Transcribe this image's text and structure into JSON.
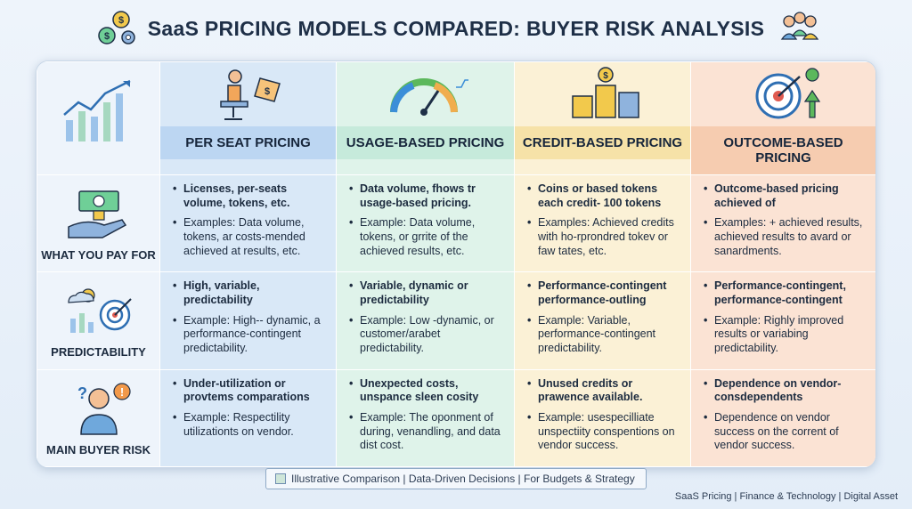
{
  "title": "SaaS PRICING MODELS COMPARED: BUYER RISK ANALYSIS",
  "columns": [
    {
      "label": "PER SEAT PRICING"
    },
    {
      "label": "USAGE-BASED PRICING"
    },
    {
      "label": "CREDIT-BASED PRICING"
    },
    {
      "label": "OUTCOME-BASED PRICING"
    }
  ],
  "rows": [
    {
      "label": "WHAT YOU PAY FOR",
      "cells": [
        [
          "Licenses, per-seats volume, tokens, etc.",
          "Examples: Data volume, tokens, ar costs-mended achieved at results, etc."
        ],
        [
          "Data volume, fhows tr usage-based pricing.",
          "Example: Data volume, tokens, or grrite of the achieved results, etc."
        ],
        [
          "Coins or based tokens each credit- 100 tokens",
          "Examples: Achieved credits with ho-rprondred tokev or faw tates, etc."
        ],
        [
          "Outcome-based pricing achieved of",
          "Examples: + achieved results, achieved results to avard or sanardments."
        ]
      ]
    },
    {
      "label": "PREDICTABILITY",
      "cells": [
        [
          "High, variable, predictability",
          "Example: High-- dynamic, a performance-contingent predictability."
        ],
        [
          "Variable, dynamic or predictability",
          "Example: Low -dynamic, or customer/arabet predictability."
        ],
        [
          "Performance-contingent performance-outling",
          "Example: Variable, performance-contingent predictability."
        ],
        [
          "Performance-contingent, performance-contingent",
          "Example: Righly improved results or variabing predictability."
        ]
      ]
    },
    {
      "label": "MAIN BUYER RISK",
      "cells": [
        [
          "Under-utilization or provtems comparations",
          "Example: Respectility utilizationts on vendor."
        ],
        [
          "Unexpected costs, unspance sleen cosity",
          "Example: The oponment of during, venandling, and data dist cost."
        ],
        [
          "Unused credits or prawence available.",
          "Example: usespecilliate unspectiity conspentions on vendor success."
        ],
        [
          "Dependence on vendor-consdependents",
          "Dependence on vendor success on the corrent of vendor success."
        ]
      ]
    }
  ],
  "footer": "Illustrative Comparison | Data-Driven Decisions | For Budgets & Strategy",
  "credit": "SaaS Pricing | Finance & Technology | Digital Asset",
  "icons": [
    "money-gear-icon",
    "people-icon",
    "growth-chart-icon",
    "seat-tag-icon",
    "speedometer-icon",
    "coin-stack-icon",
    "target-arrows-icon",
    "hand-cash-icon",
    "weather-target-icon",
    "worried-person-icon"
  ],
  "colors": {
    "perseat": "#bcd6f2",
    "usage": "#c6eadb",
    "credit": "#f6e2a8",
    "outcome": "#f6ccb0"
  }
}
